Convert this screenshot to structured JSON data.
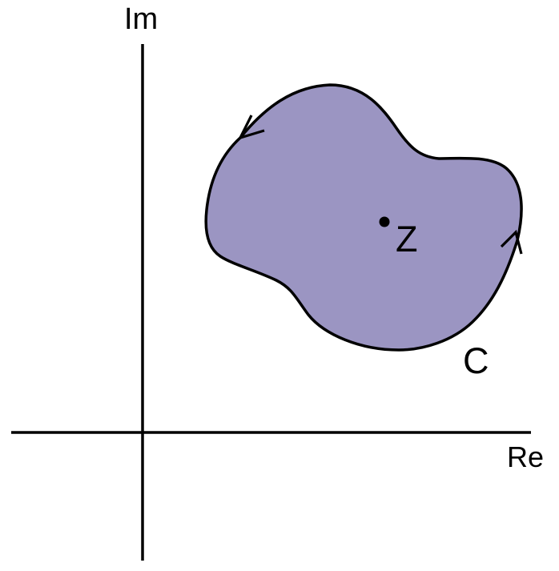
{
  "labels": {
    "imaginary_axis": "Im",
    "real_axis": "Re",
    "contour": "C",
    "point": "Z"
  },
  "colors": {
    "region_fill": "#9b95c2",
    "stroke": "#000000",
    "background": "#ffffff"
  },
  "contour_direction": "counterclockwise"
}
